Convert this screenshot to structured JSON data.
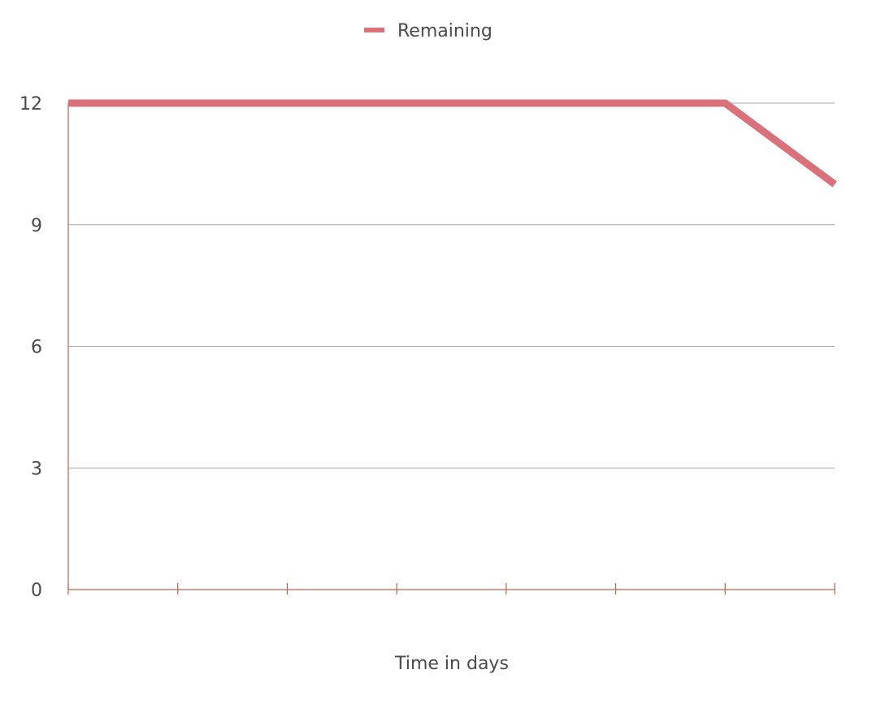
{
  "chart_data": {
    "type": "line",
    "xlabel": "Time in days",
    "ylabel": "",
    "x": [
      0,
      1,
      2,
      3,
      4,
      5,
      6,
      7
    ],
    "xlim": [
      0,
      7
    ],
    "ylim": [
      0,
      12
    ],
    "yticks": [
      "0",
      "3",
      "6",
      "9",
      "12"
    ],
    "grid": true,
    "legend": "top-center",
    "series": [
      {
        "name": "Remaining",
        "color": "#d9707a",
        "values": [
          12,
          12,
          12,
          12,
          12,
          12,
          12,
          10
        ]
      }
    ],
    "colors": {
      "axis": "#b0694f",
      "grid": "#aaaaaa",
      "text": "#4a4a4a"
    }
  }
}
